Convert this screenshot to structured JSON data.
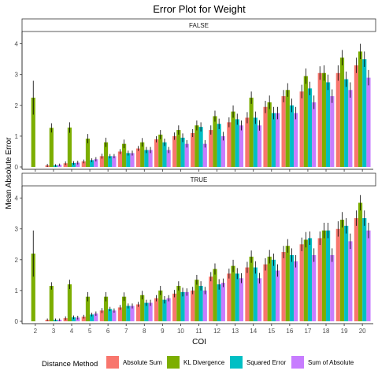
{
  "chart_data": {
    "type": "bar",
    "title": "Error Plot for Weight",
    "xlabel": "COI",
    "ylabel": "Mean Absolute Error",
    "ylim": [
      0,
      4.4
    ],
    "yticks": [
      0,
      1,
      2,
      3,
      4
    ],
    "categories": [
      "2",
      "3",
      "4",
      "5",
      "6",
      "7",
      "8",
      "9",
      "10",
      "11",
      "12",
      "13",
      "14",
      "15",
      "16",
      "17",
      "18",
      "19",
      "20"
    ],
    "legend_title": "Distance Method",
    "legend_position": "bottom",
    "grid": false,
    "error_bars": true,
    "series": [
      {
        "name": "Absolute Sum",
        "color": "#F8766D"
      },
      {
        "name": "KL Divergence",
        "color": "#7CAE00"
      },
      {
        "name": "Squared Error",
        "color": "#00BFC4"
      },
      {
        "name": "Sum of Absolute",
        "color": "#C77CFF"
      }
    ],
    "panels": [
      {
        "strip": "FALSE",
        "values": [
          [
            null,
            0.05,
            0.12,
            0.18,
            0.35,
            0.5,
            0.6,
            0.9,
            1.0,
            1.1,
            1.2,
            1.45,
            1.6,
            1.95,
            2.3,
            2.45,
            3.05,
            3.05,
            3.3
          ],
          [
            2.25,
            1.27,
            1.28,
            0.92,
            0.8,
            0.75,
            0.8,
            1.05,
            1.2,
            1.35,
            1.65,
            1.8,
            2.25,
            2.1,
            2.5,
            2.95,
            3.05,
            3.55,
            3.75
          ],
          [
            null,
            0.05,
            0.13,
            0.22,
            0.35,
            0.45,
            0.55,
            0.8,
            0.95,
            1.3,
            1.4,
            1.55,
            1.6,
            1.75,
            2.0,
            2.55,
            2.75,
            2.85,
            3.5
          ],
          [
            null,
            0.07,
            0.14,
            0.25,
            0.35,
            0.45,
            0.55,
            0.55,
            0.75,
            0.75,
            1.0,
            1.35,
            1.35,
            1.75,
            1.75,
            2.1,
            2.3,
            2.5,
            2.9
          ]
        ],
        "error": [
          [
            null,
            0.05,
            0.06,
            0.06,
            0.08,
            0.08,
            0.08,
            0.1,
            0.12,
            0.13,
            0.15,
            0.16,
            0.18,
            0.2,
            0.2,
            0.22,
            0.22,
            0.25,
            0.25
          ],
          [
            0.55,
            0.15,
            0.17,
            0.15,
            0.15,
            0.14,
            0.14,
            0.15,
            0.15,
            0.16,
            0.18,
            0.2,
            0.2,
            0.22,
            0.22,
            0.25,
            0.25,
            0.25,
            0.25
          ],
          [
            null,
            0.04,
            0.06,
            0.06,
            0.07,
            0.08,
            0.1,
            0.12,
            0.14,
            0.15,
            0.17,
            0.18,
            0.2,
            0.2,
            0.22,
            0.22,
            0.25,
            0.25,
            0.25
          ],
          [
            null,
            0.04,
            0.06,
            0.07,
            0.07,
            0.08,
            0.1,
            0.1,
            0.12,
            0.12,
            0.14,
            0.16,
            0.17,
            0.2,
            0.2,
            0.22,
            0.22,
            0.25,
            0.25
          ]
        ]
      },
      {
        "strip": "TRUE",
        "values": [
          [
            null,
            0.05,
            0.1,
            0.15,
            0.35,
            0.45,
            0.55,
            0.75,
            0.9,
            1.0,
            1.45,
            1.55,
            1.75,
            1.85,
            2.25,
            2.5,
            2.7,
            3.0,
            3.35
          ],
          [
            2.2,
            1.15,
            1.2,
            0.8,
            0.8,
            0.8,
            0.85,
            1.0,
            1.15,
            1.35,
            1.7,
            1.8,
            2.1,
            2.1,
            2.45,
            2.65,
            2.95,
            3.3,
            3.85
          ],
          [
            null,
            0.05,
            0.13,
            0.22,
            0.4,
            0.5,
            0.6,
            0.7,
            0.95,
            1.15,
            1.2,
            1.55,
            1.75,
            2.0,
            2.15,
            2.7,
            2.95,
            3.1,
            3.35
          ],
          [
            null,
            0.05,
            0.12,
            0.25,
            0.35,
            0.5,
            0.6,
            0.75,
            0.95,
            1.0,
            1.25,
            1.4,
            1.4,
            1.65,
            1.95,
            2.15,
            2.15,
            2.6,
            2.95
          ]
        ],
        "error": [
          [
            null,
            0.04,
            0.06,
            0.06,
            0.08,
            0.08,
            0.08,
            0.1,
            0.12,
            0.12,
            0.15,
            0.16,
            0.18,
            0.2,
            0.2,
            0.22,
            0.22,
            0.25,
            0.25
          ],
          [
            0.75,
            0.12,
            0.15,
            0.15,
            0.15,
            0.14,
            0.14,
            0.15,
            0.15,
            0.16,
            0.18,
            0.2,
            0.2,
            0.22,
            0.22,
            0.25,
            0.25,
            0.25,
            0.25
          ],
          [
            null,
            0.04,
            0.06,
            0.06,
            0.07,
            0.08,
            0.1,
            0.12,
            0.14,
            0.15,
            0.17,
            0.18,
            0.2,
            0.2,
            0.22,
            0.22,
            0.25,
            0.25,
            0.25
          ],
          [
            null,
            0.04,
            0.06,
            0.07,
            0.07,
            0.08,
            0.1,
            0.1,
            0.12,
            0.12,
            0.14,
            0.16,
            0.17,
            0.2,
            0.2,
            0.22,
            0.22,
            0.25,
            0.25
          ]
        ]
      }
    ]
  }
}
